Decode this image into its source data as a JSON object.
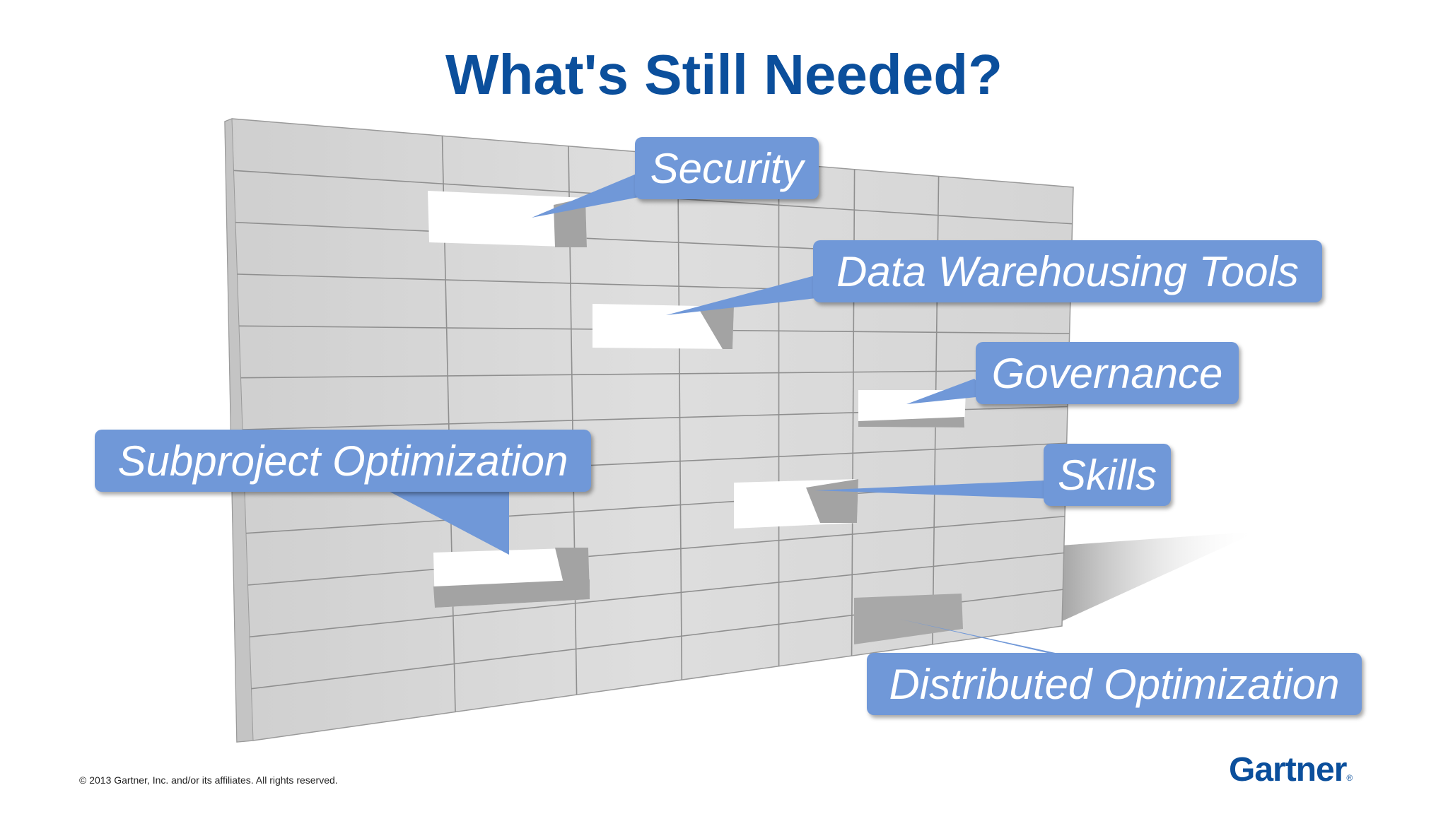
{
  "slide": {
    "title": "What's Still Needed?",
    "copyright": "© 2013 Gartner, Inc. and/or its affiliates. All rights reserved.",
    "logo_text": "Gartner",
    "logo_mark": "®"
  },
  "colors": {
    "title": "#0b4f9c",
    "callout": "#7098d8",
    "brick_face": "#d9d9d9",
    "brick_edge": "#8a8a8a",
    "gap_shadow": "#a8a8a8"
  },
  "callouts": [
    {
      "id": "security",
      "label": "Security"
    },
    {
      "id": "data-warehousing-tools",
      "label": "Data Warehousing Tools"
    },
    {
      "id": "governance",
      "label": "Governance"
    },
    {
      "id": "subproject-optimization",
      "label": "Subproject Optimization"
    },
    {
      "id": "skills",
      "label": "Skills"
    },
    {
      "id": "distributed-optimization",
      "label": "Distributed Optimization"
    }
  ]
}
